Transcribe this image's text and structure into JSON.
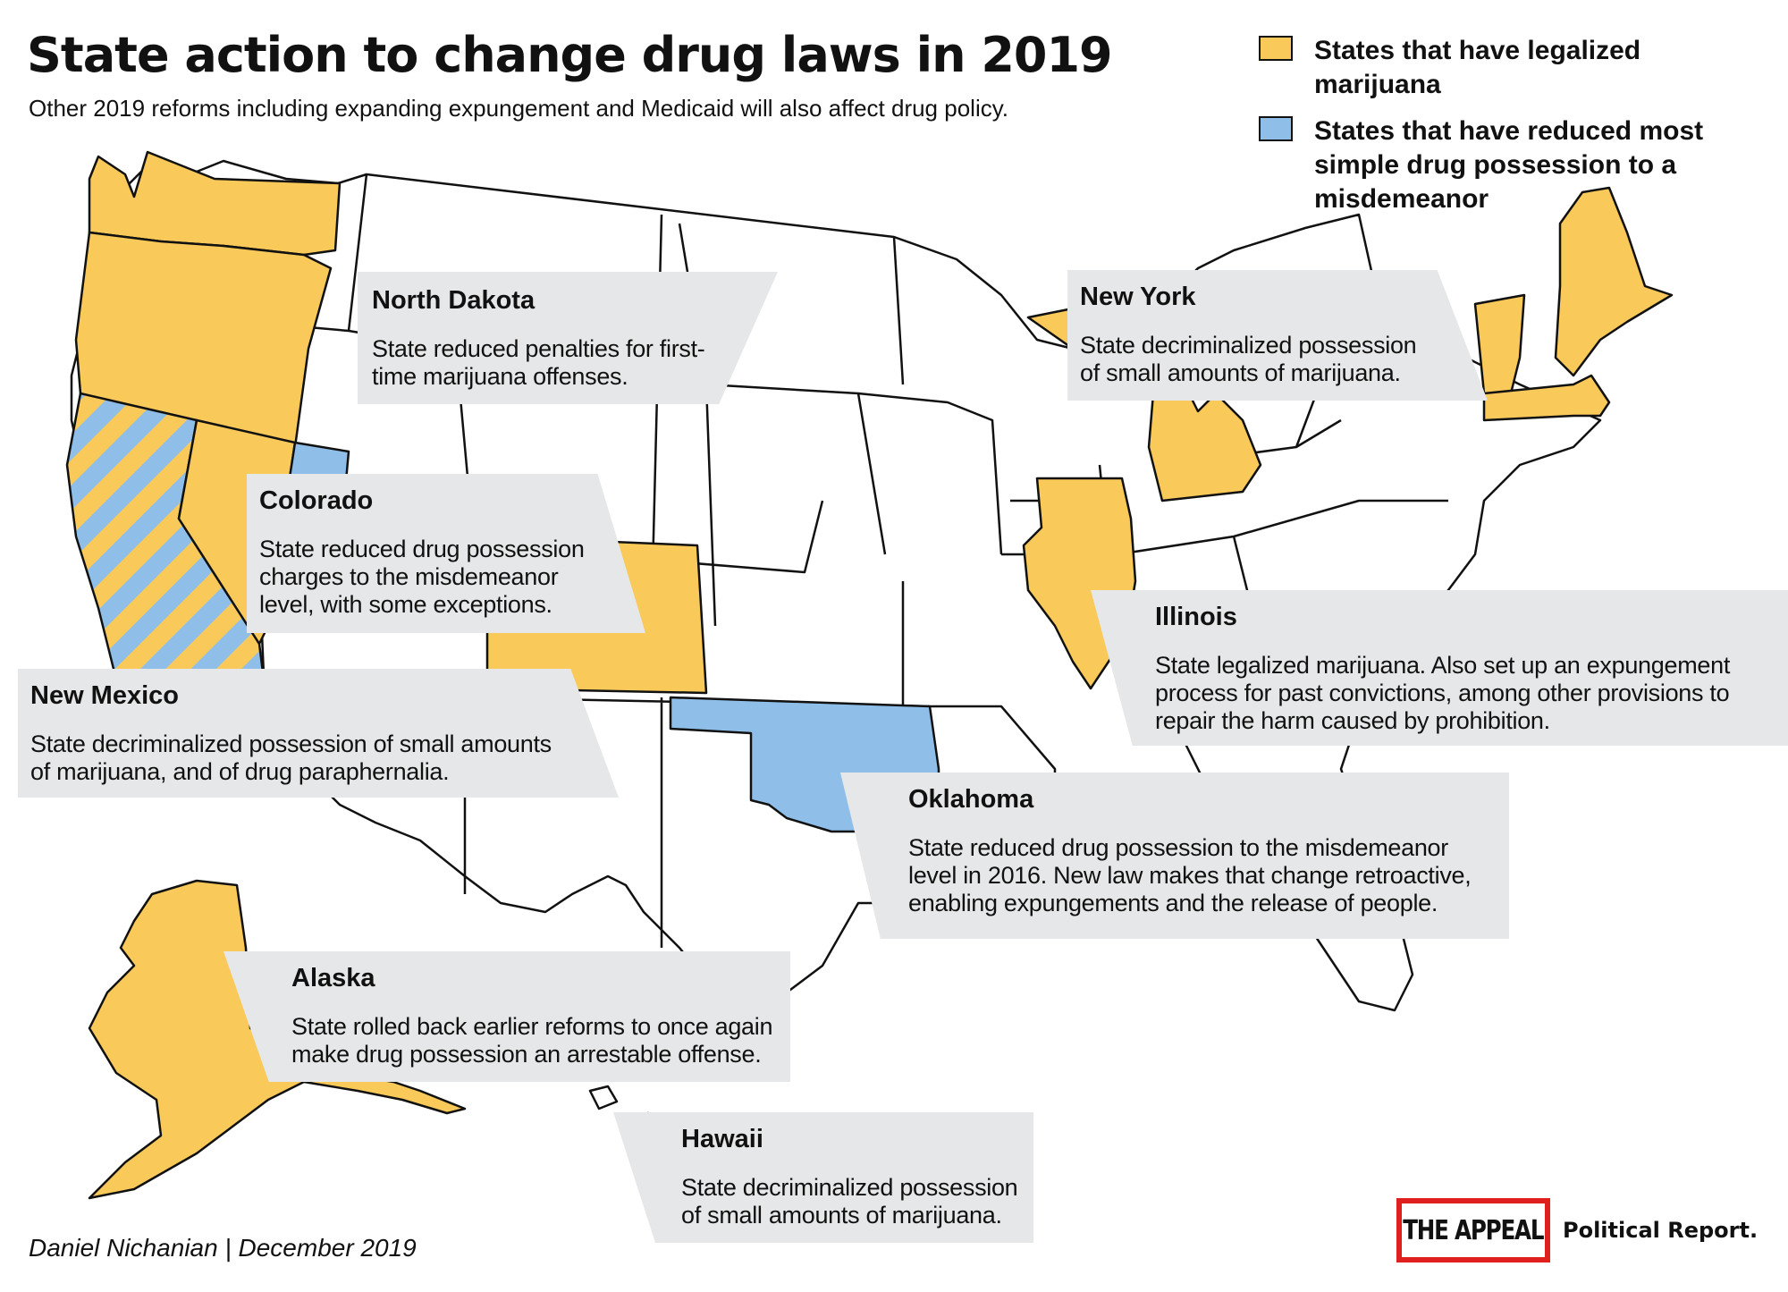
{
  "header": {
    "title": "State action to change drug laws in 2019",
    "subtitle": "Other 2019 reforms including expanding expungement and Medicaid will also affect drug policy."
  },
  "legend": {
    "items": [
      {
        "label": "States that have legalized marijuana",
        "color": "#f9c95a"
      },
      {
        "label": "States that have reduced most simple drug possession to a misdemeanor",
        "color": "#8fbfe8"
      }
    ]
  },
  "colors": {
    "legalized": "#f9c95a",
    "misdemeanor": "#8fbfe8",
    "unchanged": "#ffffff",
    "border": "#111111",
    "callout_bg": "#e6e7e8"
  },
  "map": {
    "legalized_states": [
      "Washington",
      "Oregon",
      "Nevada",
      "Colorado",
      "Illinois",
      "Michigan",
      "Vermont",
      "Maine",
      "Massachusetts",
      "Alaska"
    ],
    "misdemeanor_states": [
      "Oklahoma",
      "Utah"
    ],
    "both_states": [
      "California"
    ]
  },
  "callouts": {
    "north_dakota": {
      "title": "North Dakota",
      "body": "State reduced penalties for first-time marijuana offenses."
    },
    "new_york": {
      "title": "New York",
      "body": "State decriminalized possession of small amounts of marijuana."
    },
    "colorado": {
      "title": "Colorado",
      "body": "State reduced drug possession charges to the misdemeanor level, with some exceptions."
    },
    "illinois": {
      "title": "Illinois",
      "body": "State legalized marijuana. Also set up an expungement process for past convictions, among other provisions to repair the harm caused by prohibition."
    },
    "new_mexico": {
      "title": "New Mexico",
      "body": "State decriminalized possession of small amounts of marijuana, and of drug paraphernalia."
    },
    "oklahoma": {
      "title": "Oklahoma",
      "body": "State reduced drug possession to the misdemeanor level in 2016. New law makes that change retroactive, enabling expungements and the release of people."
    },
    "alaska": {
      "title": "Alaska",
      "body": "State rolled back earlier reforms to once again make drug possession an arrestable offense."
    },
    "hawaii": {
      "title": "Hawaii",
      "body": "State decriminalized possession of small amounts of marijuana."
    }
  },
  "footer": {
    "byline": "Daniel Nichanian | December 2019",
    "logo_text": "THE APPEAL",
    "logo_sub": "Political Report."
  }
}
